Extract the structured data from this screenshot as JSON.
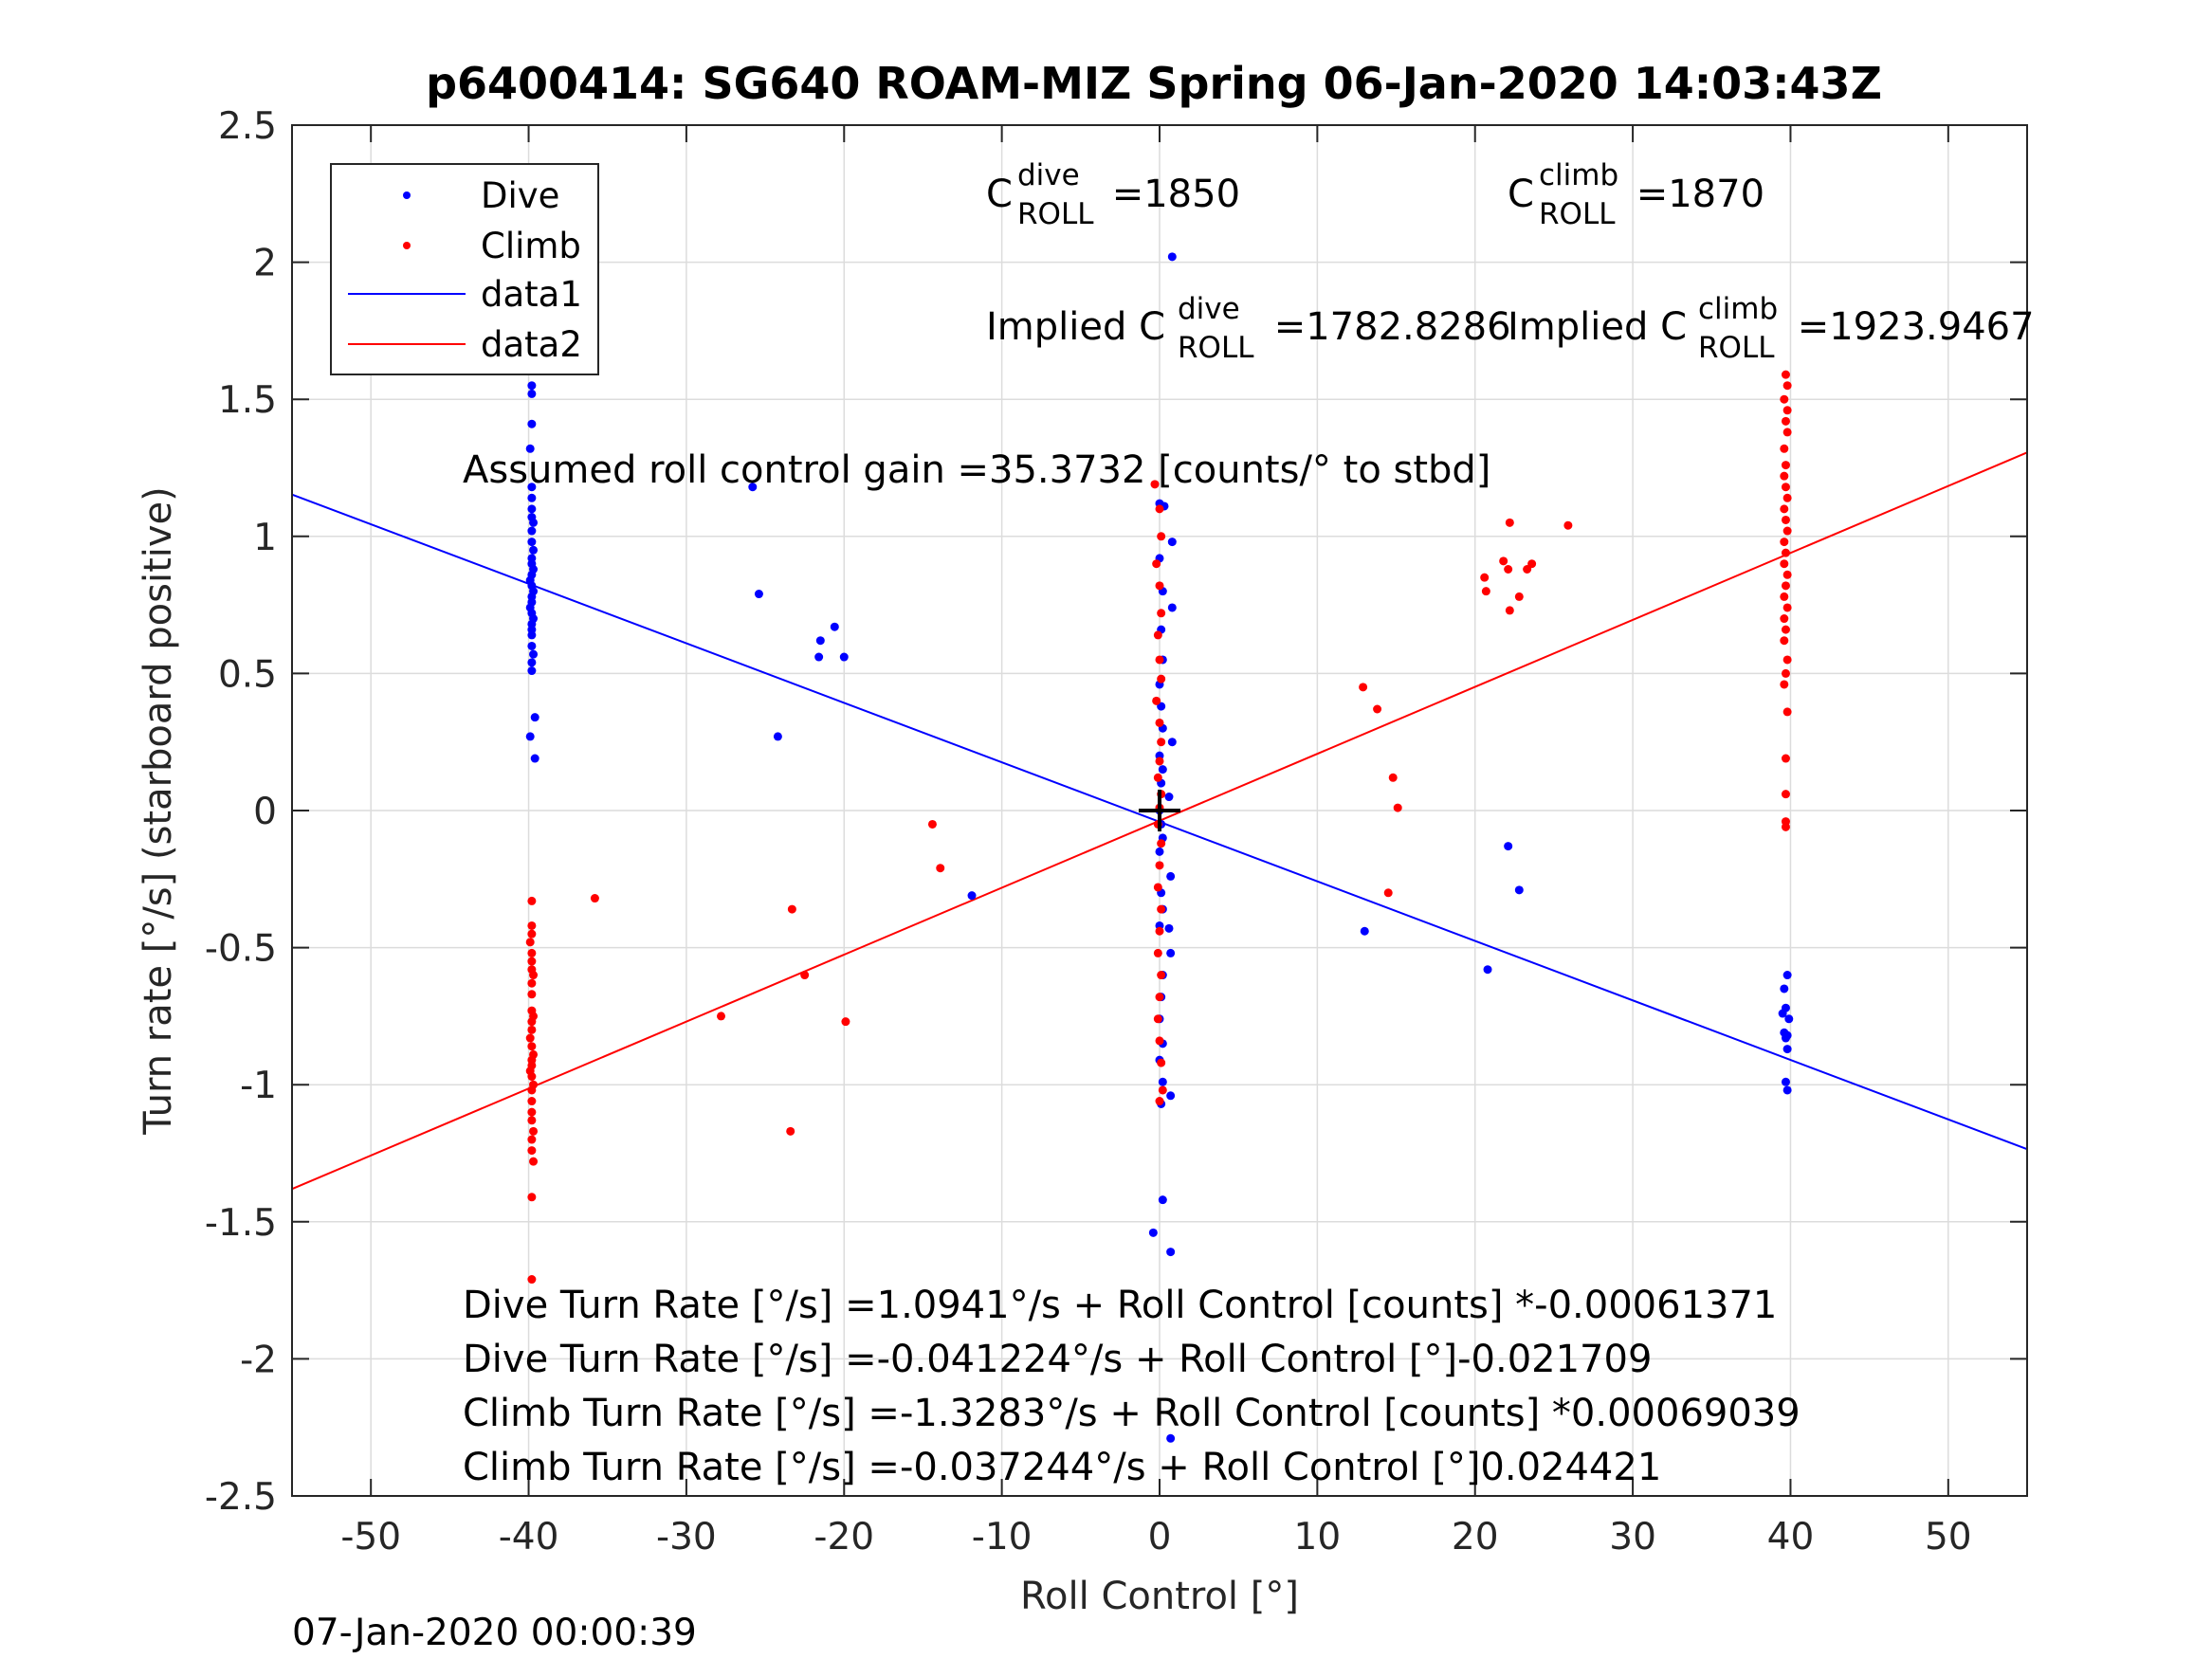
{
  "chart_data": {
    "type": "scatter",
    "title": "p6400414: SG640 ROAM-MIZ Spring 06-Jan-2020 14:03:43Z",
    "xlabel": "Roll Control [°]",
    "ylabel": "Turn rate [°/s] (starboard positive)",
    "xlim": [
      -55,
      55
    ],
    "ylim": [
      -2.5,
      2.5
    ],
    "xticks": [
      -50,
      -40,
      -30,
      -20,
      -10,
      0,
      10,
      20,
      30,
      40,
      50
    ],
    "yticks": [
      -2.5,
      -2,
      -1.5,
      -1,
      -0.5,
      0,
      0.5,
      1,
      1.5,
      2,
      2.5
    ],
    "x_tick_labels": [
      "-50",
      "-40",
      "-30",
      "-20",
      "-10",
      "0",
      "10",
      "20",
      "30",
      "40",
      "50"
    ],
    "y_tick_labels": [
      "-2.5",
      "-2",
      "-1.5",
      "-1",
      "-0.5",
      "0",
      "0.5",
      "1",
      "1.5",
      "2",
      "2.5"
    ],
    "grid": true,
    "legend_position": "top-left",
    "colors": {
      "dive": "#0000ff",
      "climb": "#ff0000",
      "marker": "#000000"
    },
    "series": [
      {
        "name": "Dive",
        "kind": "points",
        "points": [
          [
            -39.8,
            1.55
          ],
          [
            -39.8,
            1.52
          ],
          [
            -39.8,
            1.41
          ],
          [
            -39.9,
            1.32
          ],
          [
            -39.8,
            1.18
          ],
          [
            -39.8,
            1.14
          ],
          [
            -39.8,
            1.1
          ],
          [
            -39.8,
            1.07
          ],
          [
            -39.7,
            1.05
          ],
          [
            -39.8,
            1.02
          ],
          [
            -39.8,
            0.98
          ],
          [
            -39.7,
            0.95
          ],
          [
            -39.8,
            0.92
          ],
          [
            -39.8,
            0.9
          ],
          [
            -39.7,
            0.88
          ],
          [
            -39.8,
            0.86
          ],
          [
            -39.9,
            0.84
          ],
          [
            -39.8,
            0.82
          ],
          [
            -39.7,
            0.8
          ],
          [
            -39.8,
            0.78
          ],
          [
            -39.8,
            0.76
          ],
          [
            -39.9,
            0.74
          ],
          [
            -39.8,
            0.72
          ],
          [
            -39.7,
            0.7
          ],
          [
            -39.8,
            0.68
          ],
          [
            -39.8,
            0.66
          ],
          [
            -39.8,
            0.64
          ],
          [
            -39.8,
            0.6
          ],
          [
            -39.7,
            0.57
          ],
          [
            -39.8,
            0.54
          ],
          [
            -39.8,
            0.51
          ],
          [
            -39.6,
            0.34
          ],
          [
            -39.9,
            0.27
          ],
          [
            -39.6,
            0.19
          ],
          [
            -25.8,
            1.18
          ],
          [
            -25.4,
            0.79
          ],
          [
            -20.6,
            0.67
          ],
          [
            -21.5,
            0.62
          ],
          [
            -21.6,
            0.56
          ],
          [
            -20.0,
            0.56
          ],
          [
            -24.2,
            0.27
          ],
          [
            -11.9,
            -0.31
          ],
          [
            0.8,
            2.02
          ],
          [
            0.0,
            1.12
          ],
          [
            0.3,
            1.11
          ],
          [
            0.8,
            0.98
          ],
          [
            0.0,
            0.92
          ],
          [
            0.2,
            0.8
          ],
          [
            0.8,
            0.74
          ],
          [
            0.1,
            0.66
          ],
          [
            0.2,
            0.55
          ],
          [
            0.0,
            0.46
          ],
          [
            0.1,
            0.38
          ],
          [
            0.2,
            0.3
          ],
          [
            0.8,
            0.25
          ],
          [
            0.0,
            0.2
          ],
          [
            0.2,
            0.15
          ],
          [
            0.1,
            0.1
          ],
          [
            0.6,
            0.05
          ],
          [
            0.0,
            0.0
          ],
          [
            0.1,
            -0.05
          ],
          [
            0.2,
            -0.1
          ],
          [
            0.0,
            -0.15
          ],
          [
            0.7,
            -0.24
          ],
          [
            0.1,
            -0.3
          ],
          [
            0.2,
            -0.36
          ],
          [
            0.0,
            -0.42
          ],
          [
            0.6,
            -0.43
          ],
          [
            0.7,
            -0.52
          ],
          [
            0.2,
            -0.6
          ],
          [
            0.1,
            -0.68
          ],
          [
            0.0,
            -0.76
          ],
          [
            0.2,
            -0.85
          ],
          [
            0.0,
            -0.91
          ],
          [
            0.2,
            -0.99
          ],
          [
            0.7,
            -1.04
          ],
          [
            0.1,
            -1.07
          ],
          [
            0.2,
            -1.42
          ],
          [
            -0.4,
            -1.54
          ],
          [
            0.7,
            -1.61
          ],
          [
            0.7,
            -2.29
          ],
          [
            13.0,
            -0.44
          ],
          [
            20.8,
            -0.58
          ],
          [
            22.1,
            -0.13
          ],
          [
            22.8,
            -0.29
          ],
          [
            39.8,
            -0.6
          ],
          [
            39.6,
            -0.65
          ],
          [
            39.7,
            -0.72
          ],
          [
            39.5,
            -0.74
          ],
          [
            39.9,
            -0.76
          ],
          [
            39.6,
            -0.81
          ],
          [
            39.8,
            -0.82
          ],
          [
            39.7,
            -0.83
          ],
          [
            39.8,
            -0.87
          ],
          [
            39.7,
            -0.99
          ],
          [
            39.8,
            -1.02
          ]
        ]
      },
      {
        "name": "Climb",
        "kind": "points",
        "points": [
          [
            -39.8,
            -0.33
          ],
          [
            -39.8,
            -0.42
          ],
          [
            -39.8,
            -0.45
          ],
          [
            -39.9,
            -0.48
          ],
          [
            -39.8,
            -0.52
          ],
          [
            -39.8,
            -0.55
          ],
          [
            -39.8,
            -0.58
          ],
          [
            -39.7,
            -0.6
          ],
          [
            -39.8,
            -0.63
          ],
          [
            -39.8,
            -0.67
          ],
          [
            -39.8,
            -0.73
          ],
          [
            -39.7,
            -0.75
          ],
          [
            -39.8,
            -0.77
          ],
          [
            -39.8,
            -0.8
          ],
          [
            -39.9,
            -0.83
          ],
          [
            -39.8,
            -0.86
          ],
          [
            -39.7,
            -0.89
          ],
          [
            -39.8,
            -0.91
          ],
          [
            -39.8,
            -0.93
          ],
          [
            -39.9,
            -0.95
          ],
          [
            -39.8,
            -0.97
          ],
          [
            -39.7,
            -1.0
          ],
          [
            -39.8,
            -1.02
          ],
          [
            -39.8,
            -1.06
          ],
          [
            -39.8,
            -1.1
          ],
          [
            -39.8,
            -1.13
          ],
          [
            -39.7,
            -1.17
          ],
          [
            -39.8,
            -1.2
          ],
          [
            -39.8,
            -1.24
          ],
          [
            -39.7,
            -1.28
          ],
          [
            -39.8,
            -1.41
          ],
          [
            -39.8,
            -1.71
          ],
          [
            -35.8,
            -0.32
          ],
          [
            -23.3,
            -0.36
          ],
          [
            -27.8,
            -0.75
          ],
          [
            -22.5,
            -0.6
          ],
          [
            -19.9,
            -0.77
          ],
          [
            -23.4,
            -1.17
          ],
          [
            -14.4,
            -0.05
          ],
          [
            -13.9,
            -0.21
          ],
          [
            -0.3,
            1.19
          ],
          [
            0.0,
            1.1
          ],
          [
            0.1,
            1.0
          ],
          [
            -0.2,
            0.9
          ],
          [
            0.0,
            0.82
          ],
          [
            0.1,
            0.72
          ],
          [
            -0.1,
            0.64
          ],
          [
            0.0,
            0.55
          ],
          [
            0.1,
            0.48
          ],
          [
            -0.2,
            0.4
          ],
          [
            0.0,
            0.32
          ],
          [
            0.1,
            0.25
          ],
          [
            0.0,
            0.18
          ],
          [
            -0.1,
            0.12
          ],
          [
            0.1,
            0.06
          ],
          [
            0.0,
            0.01
          ],
          [
            -0.1,
            -0.05
          ],
          [
            0.1,
            -0.12
          ],
          [
            0.0,
            -0.2
          ],
          [
            -0.1,
            -0.28
          ],
          [
            0.1,
            -0.36
          ],
          [
            0.0,
            -0.44
          ],
          [
            -0.1,
            -0.52
          ],
          [
            0.1,
            -0.6
          ],
          [
            0.0,
            -0.68
          ],
          [
            -0.1,
            -0.76
          ],
          [
            0.0,
            -0.84
          ],
          [
            0.1,
            -0.92
          ],
          [
            0.2,
            -1.02
          ],
          [
            0.0,
            -1.06
          ],
          [
            12.9,
            0.45
          ],
          [
            13.8,
            0.37
          ],
          [
            14.8,
            0.12
          ],
          [
            15.1,
            0.01
          ],
          [
            14.5,
            -0.3
          ],
          [
            20.6,
            0.85
          ],
          [
            20.7,
            0.8
          ],
          [
            21.8,
            0.91
          ],
          [
            22.1,
            0.88
          ],
          [
            22.2,
            1.05
          ],
          [
            23.3,
            0.88
          ],
          [
            23.6,
            0.9
          ],
          [
            22.2,
            0.73
          ],
          [
            22.8,
            0.78
          ],
          [
            25.9,
            1.04
          ],
          [
            39.7,
            1.59
          ],
          [
            39.8,
            1.55
          ],
          [
            39.6,
            1.5
          ],
          [
            39.8,
            1.46
          ],
          [
            39.7,
            1.42
          ],
          [
            39.8,
            1.38
          ],
          [
            39.6,
            1.32
          ],
          [
            39.7,
            1.26
          ],
          [
            39.6,
            1.22
          ],
          [
            39.7,
            1.18
          ],
          [
            39.8,
            1.14
          ],
          [
            39.6,
            1.1
          ],
          [
            39.7,
            1.06
          ],
          [
            39.8,
            1.02
          ],
          [
            39.6,
            0.98
          ],
          [
            39.7,
            0.94
          ],
          [
            39.6,
            0.9
          ],
          [
            39.8,
            0.86
          ],
          [
            39.7,
            0.82
          ],
          [
            39.6,
            0.78
          ],
          [
            39.8,
            0.74
          ],
          [
            39.6,
            0.7
          ],
          [
            39.7,
            0.66
          ],
          [
            39.6,
            0.62
          ],
          [
            39.8,
            0.55
          ],
          [
            39.7,
            0.5
          ],
          [
            39.6,
            0.46
          ],
          [
            39.8,
            0.36
          ],
          [
            39.7,
            0.19
          ],
          [
            39.7,
            0.06
          ],
          [
            39.7,
            -0.04
          ],
          [
            39.7,
            -0.06
          ]
        ]
      },
      {
        "name": "data1",
        "kind": "line",
        "color": "#0000ff",
        "x": [
          -55,
          55
        ],
        "y": [
          1.1527,
          -1.2352
        ]
      },
      {
        "name": "data2",
        "kind": "line",
        "color": "#ff0000",
        "x": [
          -55,
          55
        ],
        "y": [
          -1.3804,
          1.3059
        ]
      }
    ],
    "origin_marker": {
      "x": 0,
      "y": 0,
      "symbol": "+"
    },
    "annotations": [
      {
        "id": "c_dive",
        "base": "C",
        "sup": "dive",
        "sub": "ROLL",
        "text": " =1850"
      },
      {
        "id": "c_climb",
        "base": "C",
        "sup": "climb",
        "sub": "ROLL",
        "text": " =1870"
      },
      {
        "id": "implied_dive",
        "base": "Implied C",
        "sup": "dive",
        "sub": "ROLL",
        "text": " =1782.8286"
      },
      {
        "id": "implied_climb",
        "base": "Implied C",
        "sup": "climb",
        "sub": "ROLL",
        "text": " =1923.9467"
      },
      {
        "id": "gain",
        "text": "Assumed roll control gain =35.3732 [counts/° to stbd]"
      },
      {
        "id": "eq1",
        "text": "Dive Turn Rate [°/s] =1.0941°/s + Roll Control [counts] *-0.00061371"
      },
      {
        "id": "eq2",
        "text": "Dive Turn Rate [°/s] =-0.041224°/s + Roll Control [°]-0.021709"
      },
      {
        "id": "eq3",
        "text": "Climb Turn Rate [°/s] =-1.3283°/s + Roll Control [counts] *0.00069039"
      },
      {
        "id": "eq4",
        "text": "Climb Turn Rate [°/s] =-0.037244°/s + Roll Control [°]0.024421"
      }
    ],
    "legend": [
      "Dive",
      "Climb",
      "data1",
      "data2"
    ]
  },
  "footer": {
    "timestamp": "07-Jan-2020 00:00:39"
  }
}
